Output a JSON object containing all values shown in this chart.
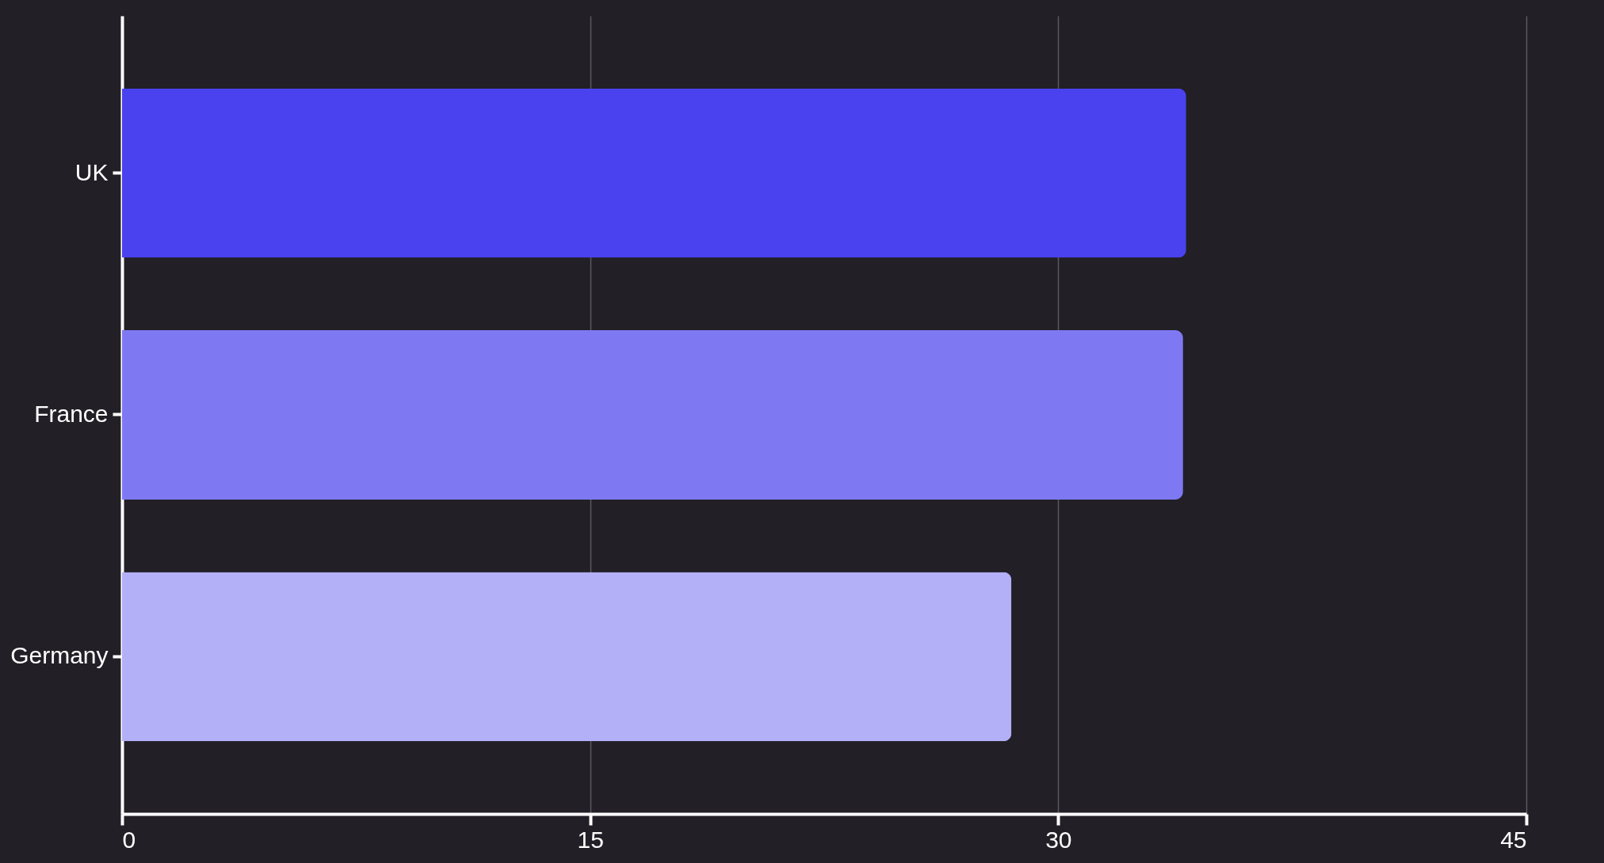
{
  "chart_data": {
    "type": "bar",
    "orientation": "horizontal",
    "categories": [
      "UK",
      "France",
      "Germany"
    ],
    "values": [
      34.1,
      34.0,
      28.5
    ],
    "colors": [
      "#4a42ef",
      "#7e79f3",
      "#b3b0f8"
    ],
    "xlim": [
      0,
      45
    ],
    "xticks": [
      0,
      15,
      30,
      45
    ],
    "grid": "x"
  }
}
